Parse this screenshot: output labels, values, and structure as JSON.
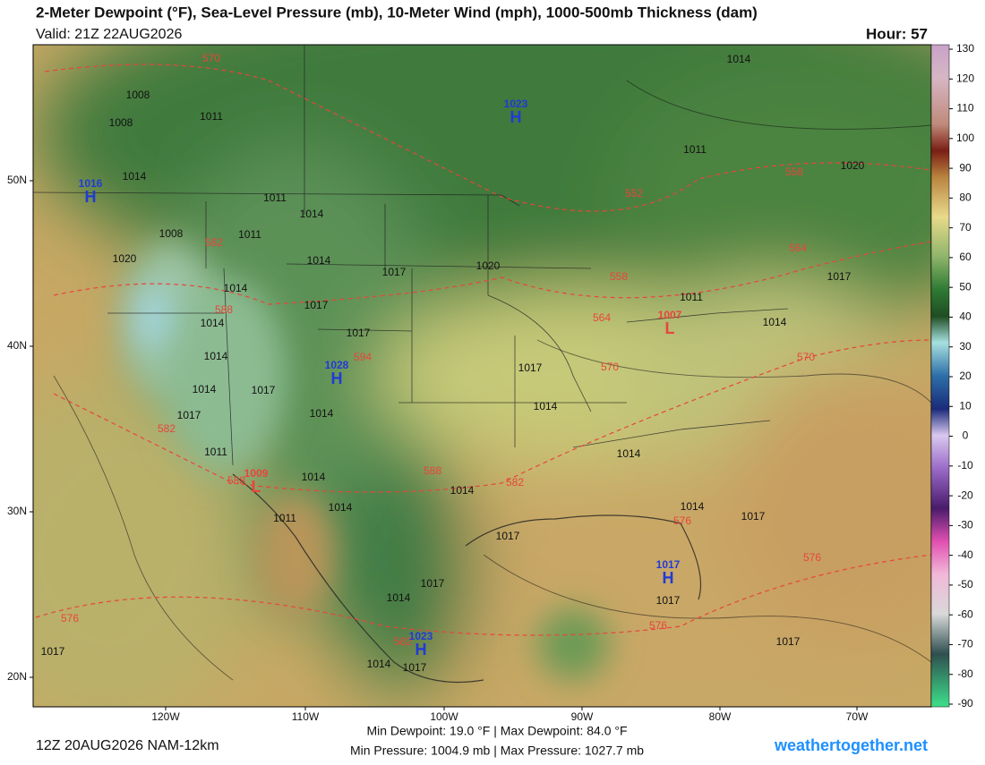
{
  "header": {
    "title": "2-Meter Dewpoint (°F), Sea-Level Pressure (mb), 10-Meter Wind (mph), 1000-500mb Thickness (dam)",
    "valid": "Valid: 21Z 22AUG2026",
    "hour": "Hour: 57"
  },
  "colorbar": {
    "ticks": [
      130,
      120,
      110,
      100,
      90,
      80,
      70,
      60,
      50,
      40,
      30,
      20,
      10,
      0,
      -10,
      -20,
      -30,
      -40,
      -50,
      -60,
      -70,
      -80,
      -90
    ]
  },
  "axes": {
    "latitudes": [
      "50N",
      "40N",
      "30N",
      "20N"
    ],
    "longitudes": [
      "120W",
      "110W",
      "100W",
      "90W",
      "80W",
      "70W"
    ]
  },
  "pressure_centers": [
    {
      "symbol": "H",
      "value": "1023"
    },
    {
      "symbol": "H",
      "value": "1016"
    },
    {
      "symbol": "H",
      "value": "1028"
    },
    {
      "symbol": "L",
      "value": "1009"
    },
    {
      "symbol": "L",
      "value": "1007"
    },
    {
      "symbol": "H",
      "value": "1017"
    },
    {
      "symbol": "H",
      "value": "1023"
    }
  ],
  "isobar_labels": [
    "1014",
    "1008",
    "1011",
    "1008",
    "1014",
    "1011",
    "1020",
    "1011",
    "1014",
    "1008",
    "1011",
    "1020",
    "1014",
    "1017",
    "1020",
    "1014",
    "1017",
    "1011",
    "1017",
    "1014",
    "1014",
    "1017",
    "1014",
    "1014",
    "1017",
    "1017",
    "1017",
    "1014",
    "1014",
    "1014",
    "1011",
    "1014",
    "1014",
    "1011",
    "1014",
    "1017",
    "1014",
    "1017",
    "1017",
    "1014",
    "1017",
    "1017",
    "1017",
    "1014",
    "1017"
  ],
  "thickness_labels": [
    "570",
    "582",
    "588",
    "552",
    "558",
    "564",
    "558",
    "564",
    "570",
    "570",
    "582",
    "588",
    "588",
    "582",
    "576",
    "576",
    "576",
    "576",
    "582",
    "594"
  ],
  "footer": {
    "run": "12Z 20AUG2026 NAM-12km",
    "dewpoint_range": "Min Dewpoint:  19.0 °F | Max Dewpoint:  84.0 °F",
    "pressure_range": "Min Pressure: 1004.9 mb | Max Pressure: 1027.7 mb",
    "site": "weathertogether.net"
  }
}
